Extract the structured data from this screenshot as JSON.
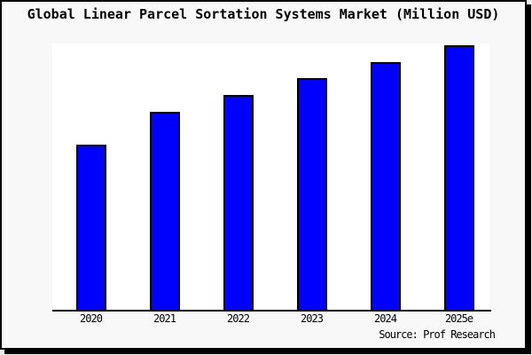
{
  "title": "Global Linear Parcel Sortation Systems Market (Million USD)",
  "source_note": "Source: Prof Research",
  "colors": {
    "bar_fill": "#0000fd",
    "bar_border": "#000000",
    "figure_background": "#f8f8f8",
    "plot_background": "#ffffff",
    "frame_border": "#000000",
    "text": "#000000"
  },
  "chart_data": {
    "type": "bar",
    "title": "Global Linear Parcel Sortation Systems Market (Million USD)",
    "categories": [
      "2020",
      "2021",
      "2022",
      "2023",
      "2024",
      "2025e"
    ],
    "values": [
      100,
      120,
      130,
      140,
      150,
      160
    ],
    "xlabel": "",
    "ylabel": "",
    "ylim": [
      0,
      161
    ],
    "grid": false,
    "legend": false,
    "y_axis_shown": false,
    "annotation": "Source: Prof Research"
  }
}
